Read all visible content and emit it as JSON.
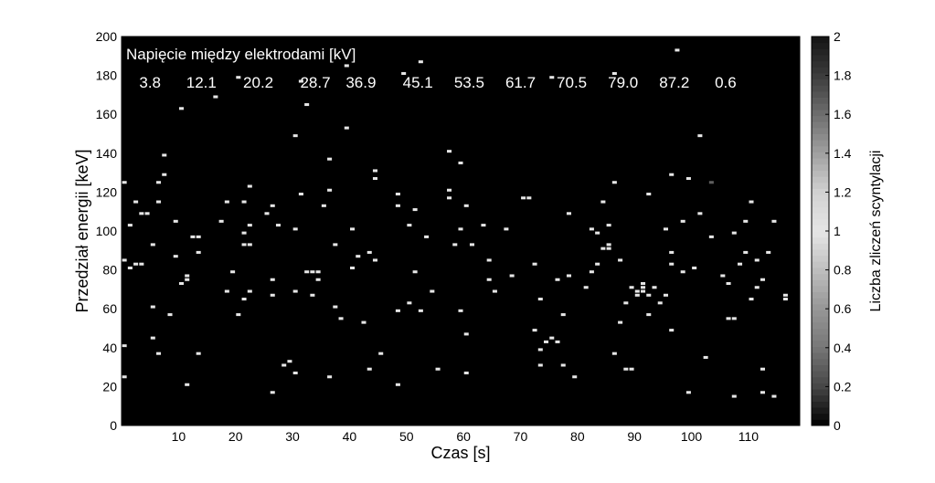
{
  "chart_data": {
    "type": "heatmap",
    "xlabel": "Czas [s]",
    "ylabel": "Przedział energii [keV]",
    "colorbar_label": "Liczba zliczeń scyntylacji",
    "xlim": [
      0,
      119
    ],
    "ylim": [
      0,
      200
    ],
    "x_ticks": [
      "10",
      "20",
      "30",
      "40",
      "50",
      "60",
      "70",
      "80",
      "90",
      "100",
      "110"
    ],
    "y_ticks": [
      "0",
      "20",
      "40",
      "60",
      "80",
      "100",
      "120",
      "140",
      "160",
      "180",
      "200"
    ],
    "colorbar_range": [
      0,
      2
    ],
    "colorbar_ticks": [
      "0",
      "0.2",
      "0.4",
      "0.6",
      "0.8",
      "1",
      "1.2",
      "1.4",
      "1.6",
      "1.8",
      "2"
    ],
    "colormap": "gray",
    "background_color": "#000000",
    "annotation_title": "Napięcie między elektrodami [kV]",
    "voltage_labels": [
      {
        "x": 5,
        "label": "3.8"
      },
      {
        "x": 14,
        "label": "12.1"
      },
      {
        "x": 24,
        "label": "20.2"
      },
      {
        "x": 34,
        "label": "28.7"
      },
      {
        "x": 42,
        "label": "36.9"
      },
      {
        "x": 52,
        "label": "45.1"
      },
      {
        "x": 61,
        "label": "53.5"
      },
      {
        "x": 70,
        "label": "61.7"
      },
      {
        "x": 79,
        "label": "70.5"
      },
      {
        "x": 88,
        "label": "79.0"
      },
      {
        "x": 97,
        "label": "87.2"
      },
      {
        "x": 106,
        "label": "0.6"
      }
    ],
    "cell_height": 2,
    "points": [
      [
        1,
        124,
        1
      ],
      [
        1,
        84,
        1
      ],
      [
        1,
        40,
        1
      ],
      [
        1,
        24,
        1
      ],
      [
        2,
        102,
        1
      ],
      [
        2,
        80,
        1
      ],
      [
        3,
        114,
        1
      ],
      [
        3,
        82,
        1
      ],
      [
        4,
        108,
        1
      ],
      [
        4,
        82,
        1
      ],
      [
        5,
        108,
        1
      ],
      [
        6,
        92,
        1
      ],
      [
        6,
        60,
        1
      ],
      [
        6,
        44,
        1
      ],
      [
        7,
        114,
        1
      ],
      [
        7,
        124,
        1
      ],
      [
        7,
        36,
        1
      ],
      [
        8,
        138,
        1
      ],
      [
        8,
        128,
        1
      ],
      [
        9,
        56,
        1
      ],
      [
        10,
        104,
        1
      ],
      [
        10,
        86,
        1
      ],
      [
        11,
        162,
        1
      ],
      [
        11,
        72,
        1
      ],
      [
        12,
        76,
        1
      ],
      [
        12,
        74,
        1
      ],
      [
        12,
        20,
        1
      ],
      [
        13,
        96,
        1
      ],
      [
        14,
        96,
        1
      ],
      [
        14,
        88,
        1
      ],
      [
        14,
        36,
        1
      ],
      [
        17,
        168,
        1
      ],
      [
        18,
        104,
        1
      ],
      [
        19,
        114,
        1
      ],
      [
        19,
        68,
        1
      ],
      [
        20,
        78,
        1
      ],
      [
        21,
        178,
        1
      ],
      [
        21,
        56,
        1
      ],
      [
        22,
        114,
        1
      ],
      [
        22,
        92,
        1
      ],
      [
        22,
        64,
        1
      ],
      [
        22,
        98,
        1
      ],
      [
        23,
        92,
        1
      ],
      [
        23,
        102,
        1
      ],
      [
        23,
        122,
        1
      ],
      [
        23,
        68,
        1
      ],
      [
        26,
        108,
        1
      ],
      [
        27,
        112,
        1
      ],
      [
        27,
        74,
        1
      ],
      [
        27,
        66,
        1
      ],
      [
        27,
        16,
        1
      ],
      [
        28,
        102,
        1
      ],
      [
        29,
        30,
        1
      ],
      [
        30,
        32,
        1
      ],
      [
        31,
        148,
        1
      ],
      [
        31,
        100,
        1
      ],
      [
        31,
        68,
        1
      ],
      [
        31,
        26,
        1
      ],
      [
        32,
        176,
        1
      ],
      [
        32,
        118,
        1
      ],
      [
        33,
        164,
        1
      ],
      [
        33,
        78,
        1
      ],
      [
        34,
        78,
        1
      ],
      [
        34,
        66,
        1
      ],
      [
        35,
        78,
        1
      ],
      [
        35,
        74,
        1
      ],
      [
        36,
        112,
        1
      ],
      [
        37,
        120,
        1
      ],
      [
        37,
        136,
        1
      ],
      [
        37,
        24,
        1
      ],
      [
        38,
        92,
        1
      ],
      [
        38,
        60,
        1
      ],
      [
        39,
        54,
        1
      ],
      [
        40,
        184,
        1
      ],
      [
        40,
        152,
        1
      ],
      [
        41,
        80,
        1
      ],
      [
        41,
        100,
        1
      ],
      [
        42,
        86,
        1
      ],
      [
        43,
        52,
        1
      ],
      [
        44,
        88,
        1
      ],
      [
        45,
        130,
        1
      ],
      [
        45,
        126,
        1
      ],
      [
        45,
        84,
        1
      ],
      [
        46,
        36,
        1
      ],
      [
        44,
        28,
        1
      ],
      [
        49,
        118,
        1
      ],
      [
        49,
        112,
        1
      ],
      [
        49,
        58,
        1
      ],
      [
        49,
        20,
        1
      ],
      [
        50,
        180,
        1
      ],
      [
        51,
        102,
        1
      ],
      [
        51,
        62,
        1
      ],
      [
        52,
        110,
        1
      ],
      [
        52,
        78,
        1
      ],
      [
        53,
        186,
        1
      ],
      [
        53,
        58,
        1
      ],
      [
        54,
        96,
        1
      ],
      [
        55,
        68,
        1
      ],
      [
        56,
        28,
        1
      ],
      [
        58,
        140,
        1
      ],
      [
        58,
        120,
        1
      ],
      [
        58,
        116,
        1
      ],
      [
        59,
        92,
        1
      ],
      [
        60,
        134,
        1
      ],
      [
        60,
        100,
        1
      ],
      [
        60,
        58,
        1
      ],
      [
        61,
        112,
        1
      ],
      [
        61,
        46,
        1
      ],
      [
        61,
        26,
        1
      ],
      [
        62,
        92,
        1
      ],
      [
        64,
        102,
        1
      ],
      [
        65,
        84,
        1
      ],
      [
        65,
        74,
        1
      ],
      [
        66,
        68,
        1
      ],
      [
        68,
        100,
        1
      ],
      [
        69,
        76,
        1
      ],
      [
        71,
        116,
        1
      ],
      [
        72,
        116,
        1
      ],
      [
        73,
        82,
        1
      ],
      [
        73,
        48,
        1
      ],
      [
        74,
        64,
        1
      ],
      [
        74,
        38,
        1
      ],
      [
        74,
        30,
        1
      ],
      [
        75,
        42,
        1
      ],
      [
        76,
        178,
        1
      ],
      [
        76,
        44,
        1
      ],
      [
        77,
        42,
        1
      ],
      [
        77,
        74,
        1
      ],
      [
        78,
        56,
        1
      ],
      [
        78,
        30,
        1
      ],
      [
        79,
        108,
        1
      ],
      [
        79,
        76,
        1
      ],
      [
        80,
        24,
        1
      ],
      [
        82,
        70,
        1
      ],
      [
        83,
        100,
        1
      ],
      [
        83,
        78,
        1
      ],
      [
        84,
        98,
        1
      ],
      [
        84,
        82,
        1
      ],
      [
        85,
        90,
        1
      ],
      [
        85,
        114,
        1
      ],
      [
        86,
        102,
        1
      ],
      [
        86,
        92,
        1
      ],
      [
        86,
        90,
        1
      ],
      [
        87,
        124,
        1
      ],
      [
        87,
        180,
        1
      ],
      [
        87,
        36,
        1
      ],
      [
        88,
        52,
        1
      ],
      [
        88,
        84,
        1
      ],
      [
        89,
        62,
        1
      ],
      [
        89,
        28,
        1
      ],
      [
        90,
        28,
        1
      ],
      [
        90,
        70,
        1
      ],
      [
        91,
        68,
        1
      ],
      [
        91,
        66,
        1
      ],
      [
        92,
        68,
        1
      ],
      [
        92,
        72,
        1
      ],
      [
        92,
        70,
        1
      ],
      [
        93,
        66,
        1
      ],
      [
        93,
        118,
        1
      ],
      [
        93,
        56,
        1
      ],
      [
        94,
        70,
        1
      ],
      [
        95,
        62,
        1
      ],
      [
        96,
        100,
        1
      ],
      [
        96,
        66,
        1
      ],
      [
        97,
        48,
        1
      ],
      [
        97,
        128,
        1
      ],
      [
        97,
        88,
        1
      ],
      [
        97,
        82,
        1
      ],
      [
        98,
        192,
        1
      ],
      [
        99,
        104,
        1
      ],
      [
        99,
        78,
        1
      ],
      [
        100,
        126,
        1
      ],
      [
        100,
        16,
        1
      ],
      [
        101,
        80,
        1
      ],
      [
        102,
        148,
        1
      ],
      [
        102,
        108,
        1
      ],
      [
        103,
        34,
        1
      ],
      [
        104,
        124,
        0.3
      ],
      [
        104,
        96,
        1
      ],
      [
        106,
        76,
        1
      ],
      [
        107,
        72,
        1
      ],
      [
        107,
        54,
        1
      ],
      [
        108,
        54,
        1
      ],
      [
        108,
        98,
        1
      ],
      [
        108,
        14,
        1
      ],
      [
        109,
        82,
        1
      ],
      [
        110,
        104,
        1
      ],
      [
        110,
        88,
        1
      ],
      [
        111,
        64,
        1
      ],
      [
        111,
        114,
        1
      ],
      [
        112,
        84,
        1
      ],
      [
        112,
        70,
        1
      ],
      [
        113,
        74,
        1
      ],
      [
        113,
        16,
        1
      ],
      [
        113,
        28,
        1
      ],
      [
        114,
        88,
        1
      ],
      [
        115,
        104,
        1
      ],
      [
        115,
        14,
        1
      ],
      [
        117,
        66,
        1
      ],
      [
        117,
        64,
        1
      ]
    ]
  }
}
